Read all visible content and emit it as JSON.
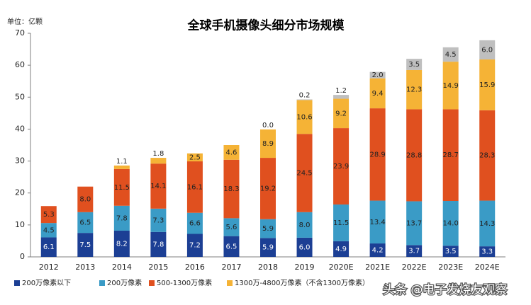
{
  "chart_data": {
    "type": "stacked-bar",
    "title": "全球手机摄像头细分市场规模",
    "unit_label": "单位：亿颗",
    "watermark": "头条 @电子发烧友观察",
    "categories": [
      "2012",
      "2013",
      "2014",
      "2015",
      "2016",
      "2017",
      "2018",
      "2019",
      "2020E",
      "2021E",
      "2022E",
      "2023E",
      "2024E"
    ],
    "ylim": [
      0,
      70
    ],
    "yticks": [
      0,
      10,
      20,
      30,
      40,
      50,
      60,
      70
    ],
    "grid": false,
    "series": [
      {
        "name": "200万像素以下",
        "color": "#1c3f94",
        "values": [
          6.1,
          7.5,
          8.2,
          7.8,
          7.2,
          6.5,
          5.9,
          6.0,
          4.9,
          4.2,
          3.7,
          3.5,
          3.3
        ],
        "value_labels": [
          "6.1",
          "7.5",
          "8.2",
          "7.8",
          "7.2",
          "6.5",
          "5.9",
          "6.0",
          "4.9",
          "4.2",
          "3.7",
          "3.5",
          "3.3"
        ]
      },
      {
        "name": "200万像素",
        "color": "#3a9bc6",
        "values": [
          4.5,
          6.5,
          7.8,
          7.3,
          6.6,
          5.6,
          5.9,
          8.0,
          11.5,
          13.4,
          13.7,
          14.0,
          14.3
        ],
        "value_labels": [
          "4.5",
          "6.5",
          "7.8",
          "7.3",
          "6.6",
          "5.6",
          "5.9",
          "8.0",
          "11.5",
          "13.4",
          "13.7",
          "14.0",
          "14.3"
        ]
      },
      {
        "name": "500-1300万像素",
        "color": "#e0501f",
        "values": [
          5.3,
          8.0,
          11.5,
          14.1,
          16.1,
          18.3,
          19.2,
          24.5,
          23.9,
          28.9,
          28.8,
          28.7,
          28.3
        ],
        "value_labels": [
          "5.3",
          "8.0",
          "11.5",
          "14.1",
          "16.1",
          "18.3",
          "19.2",
          "24.5",
          "23.9",
          "28.9",
          "28.8",
          "28.7",
          "28.3"
        ]
      },
      {
        "name": "1300万-4800万像素（不含1300万像素）",
        "color": "#f5b336",
        "values": [
          null,
          null,
          1.1,
          1.8,
          2.5,
          4.6,
          8.9,
          10.6,
          9.2,
          9.4,
          12.3,
          14.9,
          15.9
        ],
        "value_labels": [
          null,
          null,
          "1.1",
          "1.8",
          "2.5",
          "4.6",
          "8.9",
          "10.6",
          "9.2",
          "9.4",
          "12.3",
          "14.9",
          "15.9"
        ]
      },
      {
        "color": "#bfbfbf",
        "values": [
          null,
          null,
          null,
          null,
          null,
          null,
          0.0,
          0.2,
          1.2,
          2.0,
          3.5,
          4.5,
          6.0
        ],
        "value_labels": [
          null,
          null,
          null,
          null,
          null,
          null,
          "0.0",
          "0.2",
          "1.2",
          "2.0",
          "3.5",
          "4.5",
          "6.0"
        ]
      }
    ]
  }
}
